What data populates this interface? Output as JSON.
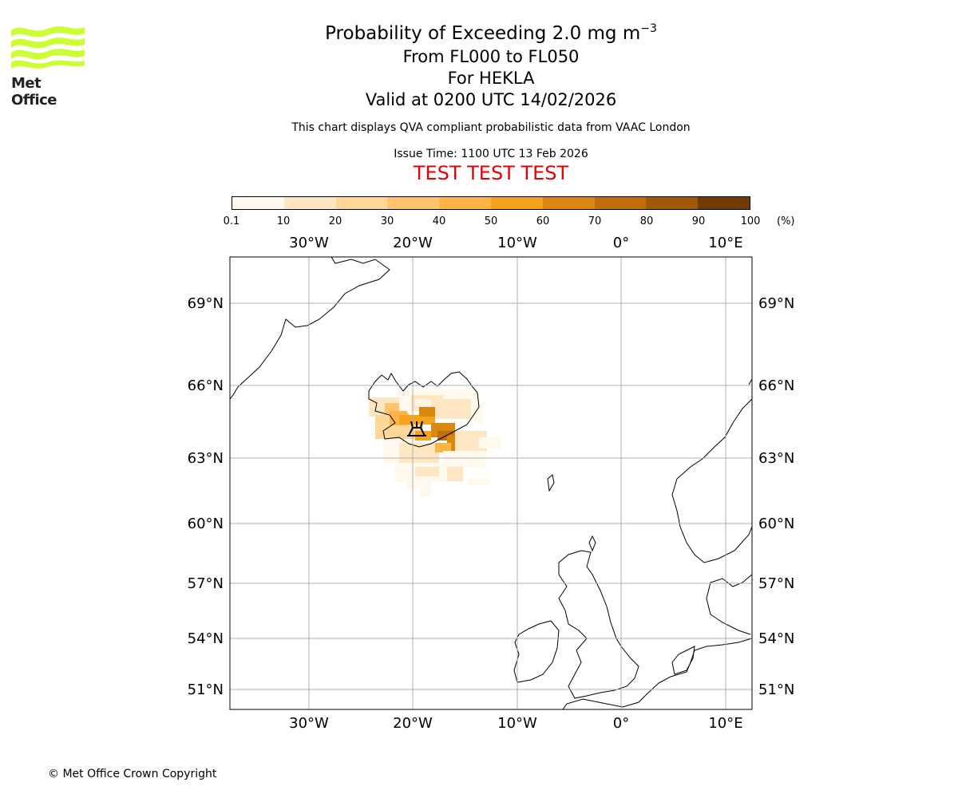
{
  "logo": {
    "text": "Met Office",
    "icon": "met-office-wave-logo",
    "color": "#ccff33"
  },
  "header": {
    "title_main": "Probability of Exceeding 2.0 mg m",
    "title_sup": "−3",
    "level_range": "From FL000 to FL050",
    "volcano": "For HEKLA",
    "valid_time": "Valid at 0200 UTC 14/02/2026",
    "description": "This chart displays QVA compliant probabilistic data from VAAC London",
    "issue_time": "Issue Time: 1100 UTC 13 Feb 2026",
    "test_banner": "TEST TEST TEST"
  },
  "colorbar": {
    "ticks": [
      "0.1",
      "10",
      "20",
      "30",
      "40",
      "50",
      "60",
      "70",
      "80",
      "90",
      "100"
    ],
    "unit": "(%)",
    "colors": [
      "#fff8ec",
      "#ffe6c2",
      "#ffd79a",
      "#ffc46e",
      "#ffb444",
      "#f7a21c",
      "#d98710",
      "#bf700a",
      "#9e5a06",
      "#6e3c04"
    ]
  },
  "map": {
    "lon_labels": [
      "30°W",
      "20°W",
      "10°W",
      "0°",
      "10°E"
    ],
    "lat_labels": [
      "69°N",
      "66°N",
      "63°N",
      "60°N",
      "57°N",
      "54°N",
      "51°N"
    ],
    "volcano_marker": "volcano-icon"
  },
  "footer": {
    "copyright": "© Met Office Crown Copyright"
  }
}
